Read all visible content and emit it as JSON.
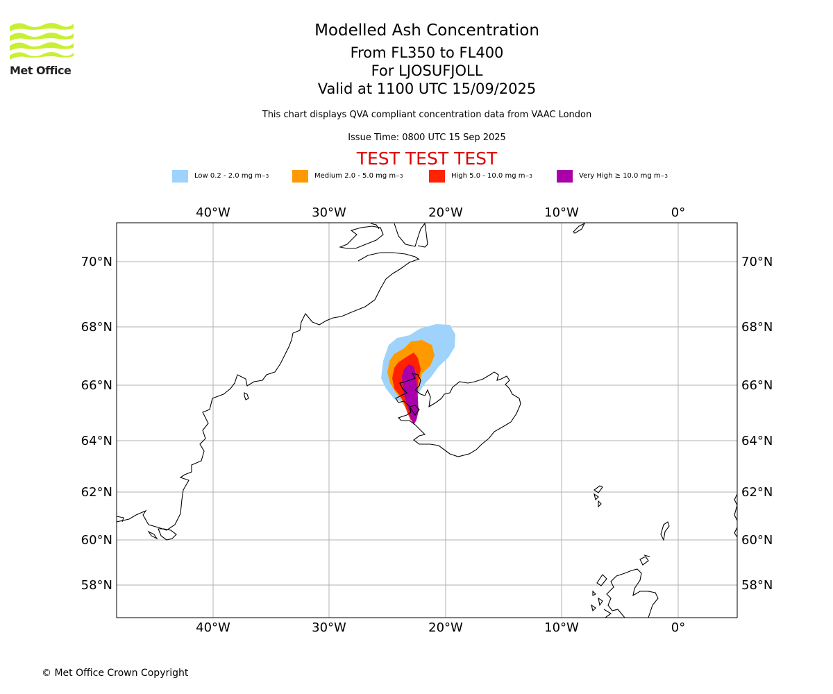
{
  "header": {
    "logo_text": "Met Office",
    "title": "Modelled Ash Concentration",
    "levels": "From FL350 to FL400",
    "volcano": "For LJOSUFJOLL",
    "valid": "Valid at 1100 UTC 15/09/2025",
    "description": "This chart displays QVA compliant concentration data from VAAC London",
    "issue_time": "Issue Time: 0800 UTC 15 Sep 2025",
    "test_banner": "TEST TEST TEST"
  },
  "legend": [
    {
      "label": "Low 0.2 - 2.0 mg m",
      "color": "#9fd3fb"
    },
    {
      "label": "Medium 2.0 - 5.0 mg m",
      "color": "#ff9900"
    },
    {
      "label": "High 5.0 - 10.0 mg m",
      "color": "#ff2200"
    },
    {
      "label": "Very High ≥ 10.0 mg m",
      "color": "#aa00aa"
    }
  ],
  "legend_exponent": "−3",
  "axes": {
    "lon_ticks": [
      "40°W",
      "30°W",
      "20°W",
      "10°W",
      "0°"
    ],
    "lat_ticks": [
      "70°N",
      "68°N",
      "66°N",
      "64°N",
      "62°N",
      "60°N",
      "58°N"
    ]
  },
  "footer": {
    "copyright": "© Met Office Crown Copyright"
  },
  "colors": {
    "test_banner": "#e00000",
    "grid": "#b0b0b0"
  }
}
